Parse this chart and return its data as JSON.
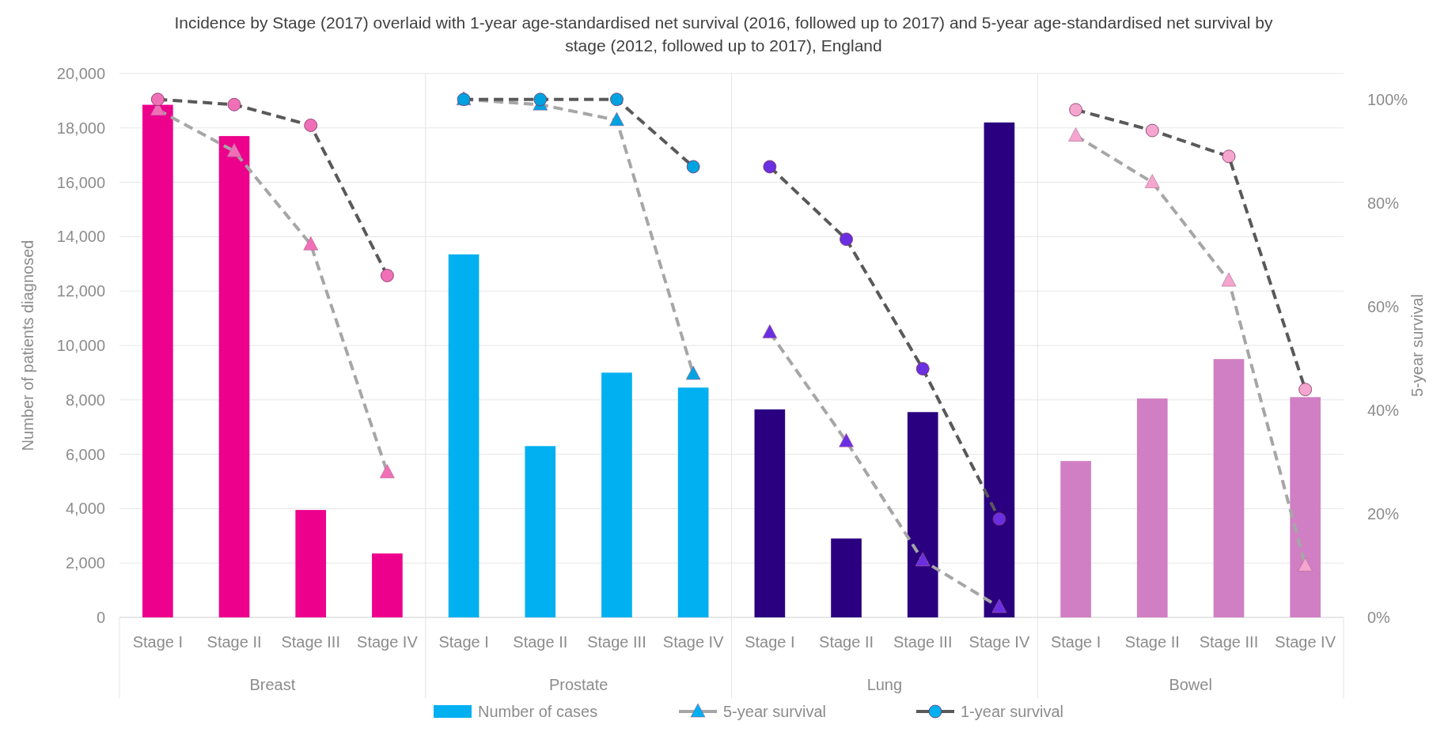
{
  "chart_data": {
    "type": "bar",
    "title": "Incidence by Stage (2017) overlaid with 1-year age-standardised net survival (2016, followed up to 2017) and 5-year age-standardised net survival by stage (2012, followed up to 2017), England",
    "ylabel": "Number of patients diagnosed",
    "y2label": "5-year survival",
    "categories": [
      "Stage I",
      "Stage II",
      "Stage III",
      "Stage IV",
      "Stage I",
      "Stage II",
      "Stage III",
      "Stage IV",
      "Stage I",
      "Stage II",
      "Stage III",
      "Stage IV",
      "Stage I",
      "Stage II",
      "Stage III",
      "Stage IV"
    ],
    "annotations": [
      "Breast",
      "Prostate",
      "Lung",
      "Bowel"
    ],
    "series": [
      {
        "name": "Number of cases",
        "color": "#00b0f0",
        "colors": [
          "#ec008c",
          "#ec008c",
          "#ec008c",
          "#ec008c",
          "#00b0f0",
          "#00b0f0",
          "#00b0f0",
          "#00b0f0",
          "#2a0080",
          "#2a0080",
          "#2a0080",
          "#2a0080",
          "#d07fc4",
          "#d07fc4",
          "#d07fc4",
          "#d07fc4"
        ],
        "values": [
          18850,
          17700,
          3950,
          2350,
          13350,
          6300,
          9000,
          8450,
          7650,
          2900,
          7550,
          18200,
          5750,
          8050,
          9500,
          8100
        ]
      },
      {
        "name": "5-year survival",
        "type": "line",
        "axis": "y2",
        "line_style": "dashed",
        "marker": "triangle",
        "color": "#a6a6a6",
        "colors": [
          "#f070b8",
          "#f070b8",
          "#f070b8",
          "#f070b8",
          "#00a3e0",
          "#00a3e0",
          "#00a3e0",
          "#00a3e0",
          "#6a2fe0",
          "#6a2fe0",
          "#6a2fe0",
          "#6a2fe0",
          "#f4a6cf",
          "#f4a6cf",
          "#f4a6cf",
          "#f4a6cf"
        ],
        "values": [
          98,
          90,
          72,
          28,
          100,
          99,
          96,
          47,
          55,
          34,
          11,
          2,
          93,
          84,
          65,
          10
        ]
      },
      {
        "name": "1-year survival",
        "type": "line",
        "axis": "y2",
        "line_style": "dashed",
        "marker": "circle",
        "color": "#595959",
        "colors": [
          "#f070b8",
          "#f070b8",
          "#f070b8",
          "#f070b8",
          "#00a3e0",
          "#00a3e0",
          "#00a3e0",
          "#00a3e0",
          "#6a2fe0",
          "#6a2fe0",
          "#6a2fe0",
          "#6a2fe0",
          "#f4a6cf",
          "#f4a6cf",
          "#f4a6cf",
          "#f4a6cf"
        ],
        "values": [
          100,
          99,
          95,
          66,
          100,
          100,
          100,
          87,
          87,
          73,
          48,
          19,
          98,
          94,
          89,
          44
        ]
      }
    ],
    "ylim": [
      0,
      20000
    ],
    "yticks": [
      {
        "value": 0,
        "label": "0"
      },
      {
        "value": 2000,
        "label": "2,000"
      },
      {
        "value": 4000,
        "label": "4,000"
      },
      {
        "value": 6000,
        "label": "6,000"
      },
      {
        "value": 8000,
        "label": "8,000"
      },
      {
        "value": 10000,
        "label": "10,000"
      },
      {
        "value": 12000,
        "label": "12,000"
      },
      {
        "value": 14000,
        "label": "14,000"
      },
      {
        "value": 16000,
        "label": "16,000"
      },
      {
        "value": 18000,
        "label": "18,000"
      },
      {
        "value": 20000,
        "label": "20,000"
      }
    ],
    "y2lim": [
      0,
      105
    ],
    "y2ticks": [
      {
        "value": 0,
        "label": "0%"
      },
      {
        "value": 20,
        "label": "20%"
      },
      {
        "value": 40,
        "label": "40%"
      },
      {
        "value": 60,
        "label": "60%"
      },
      {
        "value": 80,
        "label": "80%"
      },
      {
        "value": 100,
        "label": "100%"
      }
    ],
    "grid": "y",
    "legend": "bottom"
  }
}
